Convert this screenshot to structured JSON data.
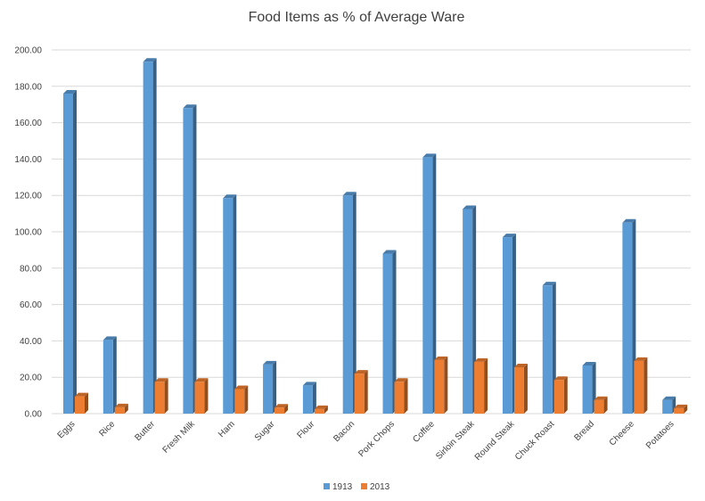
{
  "chart_data": {
    "type": "bar",
    "title": "Food Items as % of Average Ware",
    "categories": [
      "Eggs",
      "Rice",
      "Butter",
      "Fresh Milk",
      "Ham",
      "Sugar",
      "Flour",
      "Bacon",
      "Pork Chops",
      "Coffee",
      "Sirloin Steak",
      "Round Steak",
      "Chuck Roast",
      "Bread",
      "Cheese",
      "Potatoes"
    ],
    "series": [
      {
        "name": "1913",
        "color": "#5b9bd5",
        "values": [
          176,
          40.5,
          193.5,
          168,
          118.5,
          27,
          15.5,
          120,
          88,
          141,
          112.5,
          97,
          70.5,
          26.5,
          105,
          7.5
        ]
      },
      {
        "name": "2013",
        "color": "#ed7d31",
        "values": [
          9.5,
          3.5,
          17.5,
          17.5,
          13.5,
          3.3,
          2.5,
          22,
          17.5,
          29.5,
          28.5,
          25.5,
          18.5,
          7.5,
          29,
          3
        ]
      }
    ],
    "yticks": [
      "0.00",
      "20.00",
      "40.00",
      "60.00",
      "80.00",
      "100.00",
      "120.00",
      "140.00",
      "160.00",
      "180.00",
      "200.00"
    ],
    "ylim": [
      0,
      200
    ],
    "grid": true,
    "legend_position": "bottom"
  }
}
